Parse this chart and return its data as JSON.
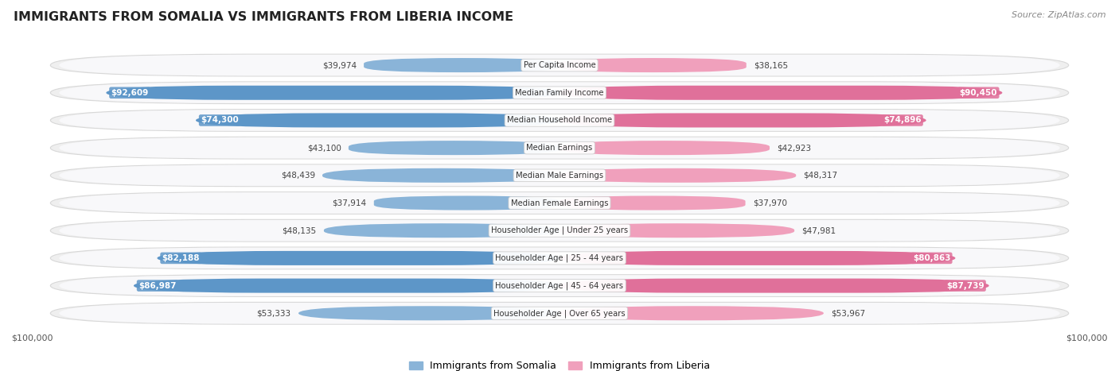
{
  "title": "IMMIGRANTS FROM SOMALIA VS IMMIGRANTS FROM LIBERIA INCOME",
  "source": "Source: ZipAtlas.com",
  "categories": [
    "Per Capita Income",
    "Median Family Income",
    "Median Household Income",
    "Median Earnings",
    "Median Male Earnings",
    "Median Female Earnings",
    "Householder Age | Under 25 years",
    "Householder Age | 25 - 44 years",
    "Householder Age | 45 - 64 years",
    "Householder Age | Over 65 years"
  ],
  "somalia_values": [
    39974,
    92609,
    74300,
    43100,
    48439,
    37914,
    48135,
    82188,
    86987,
    53333
  ],
  "liberia_values": [
    38165,
    90450,
    74896,
    42923,
    48317,
    37970,
    47981,
    80863,
    87739,
    53967
  ],
  "somalia_labels": [
    "$39,974",
    "$92,609",
    "$74,300",
    "$43,100",
    "$48,439",
    "$37,914",
    "$48,135",
    "$82,188",
    "$86,987",
    "$53,333"
  ],
  "liberia_labels": [
    "$38,165",
    "$90,450",
    "$74,896",
    "$42,923",
    "$48,317",
    "$37,970",
    "$47,981",
    "$80,863",
    "$87,739",
    "$53,967"
  ],
  "max_value": 100000,
  "somalia_color": "#8ab4d8",
  "somalia_color_dark": "#5d96c8",
  "liberia_color": "#f0a0bc",
  "liberia_color_dark": "#e0709a",
  "row_bg_color": "#efefef",
  "row_inner_color": "#f8f8fa",
  "legend_somalia": "Immigrants from Somalia",
  "legend_liberia": "Immigrants from Liberia",
  "xlabel_left": "$100,000",
  "xlabel_right": "$100,000",
  "inside_label_threshold": 65000
}
